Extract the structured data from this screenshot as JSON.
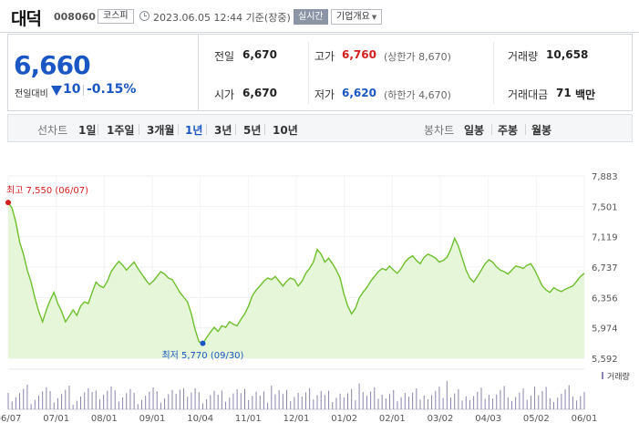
{
  "header": {
    "stock_name": "대덕",
    "stock_code": "008060",
    "market": "코스피",
    "timestamp": "2023.06.05 12:44 기준(장중)",
    "realtime_label": "실시간",
    "company_info_label": "기업개요"
  },
  "quote": {
    "current_price": "6,660",
    "change_label": "전일대비",
    "change_value": "10",
    "change_pct": "-0.15%",
    "prev_close_label": "전일",
    "prev_close": "6,670",
    "open_label": "시가",
    "open": "6,670",
    "high_label": "고가",
    "high": "6,760",
    "upper_limit": "(상한가 8,670)",
    "low_label": "저가",
    "low": "6,620",
    "lower_limit": "(하한가 4,670)",
    "volume_label": "거래량",
    "volume": "10,658",
    "amount_label": "거래대금",
    "amount": "71",
    "amount_unit": "백만"
  },
  "line_tabs": {
    "title": "선차트",
    "items": [
      "1일",
      "1주일",
      "3개월",
      "1년",
      "3년",
      "5년",
      "10년"
    ],
    "active": "1년"
  },
  "candle_tabs": {
    "title": "봉차트",
    "items": [
      "일봉",
      "주봉",
      "월봉"
    ]
  },
  "colors": {
    "up": "#d41d1d",
    "down": "#1a56c4",
    "line": "#6dbf2c",
    "area": "#e6f6d8",
    "volume": "#8a84aa"
  },
  "chart_data": {
    "type": "area",
    "ylim": [
      5592,
      7883
    ],
    "y_ticks": [
      "7,883",
      "7,501",
      "7,119",
      "6,737",
      "6,356",
      "5,974",
      "5,592"
    ],
    "x_ticks": [
      "06/07",
      "07/01",
      "08/01",
      "09/01",
      "10/04",
      "11/01",
      "12/01",
      "01/02",
      "02/01",
      "03/02",
      "04/03",
      "05/02",
      "06/01"
    ],
    "high_annotation": "최고 7,550 (06/07)",
    "low_annotation": "최저 5,770 (09/30)",
    "volume_legend": "거래량",
    "series": [
      {
        "values": [
          7550,
          7480,
          7300,
          7050,
          6900,
          6700,
          6550,
          6350,
          6180,
          6050,
          6200,
          6320,
          6420,
          6280,
          6180,
          6050,
          6120,
          6200,
          6130,
          6250,
          6300,
          6280,
          6420,
          6550,
          6500,
          6480,
          6560,
          6680,
          6750,
          6810,
          6760,
          6700,
          6750,
          6800,
          6720,
          6650,
          6580,
          6520,
          6560,
          6620,
          6680,
          6650,
          6600,
          6580,
          6500,
          6420,
          6360,
          6300,
          6150,
          5950,
          5800,
          5780,
          5850,
          5920,
          5980,
          5930,
          6000,
          5980,
          6050,
          6020,
          6000,
          6080,
          6150,
          6250,
          6380,
          6450,
          6500,
          6560,
          6600,
          6580,
          6620,
          6560,
          6500,
          6560,
          6600,
          6580,
          6500,
          6560,
          6660,
          6720,
          6800,
          6960,
          6900,
          6800,
          6850,
          6780,
          6700,
          6600,
          6400,
          6250,
          6150,
          6220,
          6350,
          6420,
          6480,
          6560,
          6620,
          6680,
          6720,
          6700,
          6750,
          6700,
          6660,
          6720,
          6800,
          6850,
          6880,
          6820,
          6780,
          6860,
          6900,
          6880,
          6850,
          6800,
          6820,
          6860,
          6960,
          7100,
          7000,
          6850,
          6700,
          6600,
          6550,
          6620,
          6700,
          6780,
          6830,
          6800,
          6740,
          6700,
          6680,
          6650,
          6700,
          6750,
          6740,
          6720,
          6760,
          6780,
          6700,
          6600,
          6500,
          6450,
          6420,
          6480,
          6450,
          6430,
          6460,
          6480,
          6500,
          6560,
          6620,
          6660
        ]
      }
    ]
  }
}
